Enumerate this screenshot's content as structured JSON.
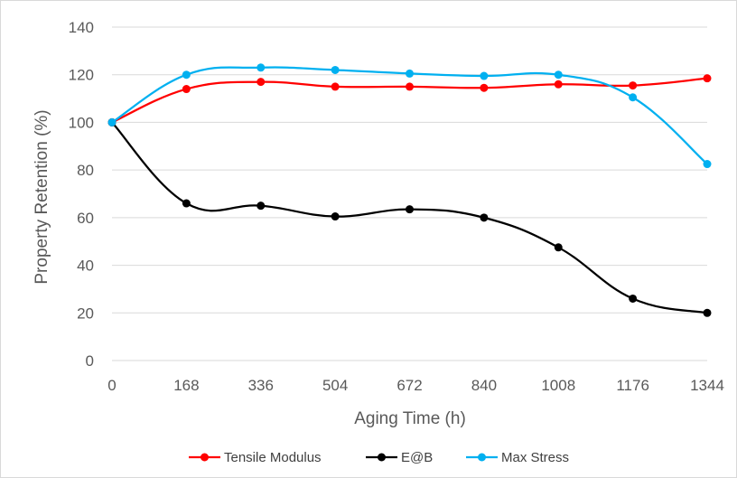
{
  "chart_data": {
    "type": "line",
    "title": "",
    "xlabel": "Aging Time (h)",
    "ylabel": "Property Retention (%)",
    "x": [
      0,
      168,
      336,
      504,
      672,
      840,
      1008,
      1176,
      1344
    ],
    "xticks": [
      "0",
      "168",
      "336",
      "504",
      "672",
      "840",
      "1008",
      "1176",
      "1344"
    ],
    "yticks": [
      "0",
      "20",
      "40",
      "60",
      "80",
      "100",
      "120",
      "140"
    ],
    "ylim": [
      0,
      140
    ],
    "grid": "horizontal",
    "legend_position": "bottom",
    "series": [
      {
        "name": "Tensile Modulus",
        "color": "#ff0000",
        "values": [
          100,
          114,
          117,
          115,
          115,
          114.5,
          116,
          115.5,
          118.5
        ]
      },
      {
        "name": "E@B",
        "color": "#000000",
        "values": [
          100,
          66,
          65,
          60.5,
          63.5,
          60,
          47.5,
          26,
          20
        ]
      },
      {
        "name": "Max Stress",
        "color": "#00b0f0",
        "values": [
          100,
          120,
          123,
          122,
          120.5,
          119.5,
          120,
          110.5,
          82.5
        ]
      }
    ]
  }
}
